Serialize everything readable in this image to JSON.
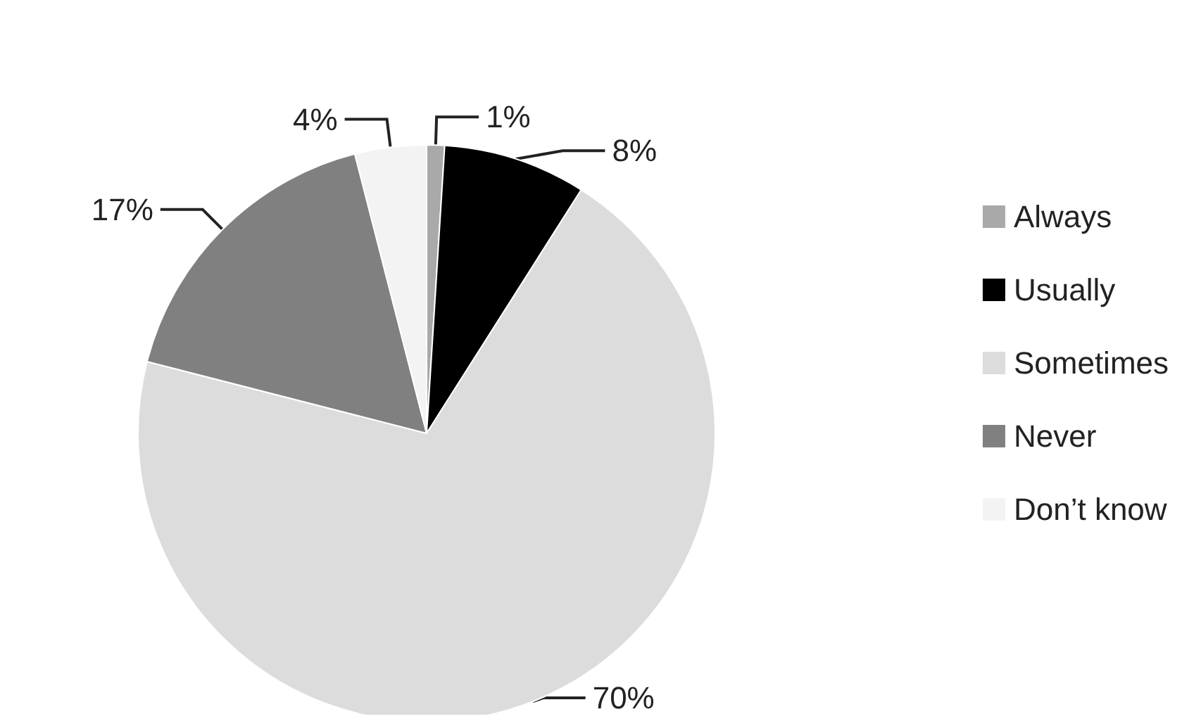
{
  "chart_data": {
    "type": "pie",
    "categories": [
      "Always",
      "Usually",
      "Sometimes",
      "Never",
      "Don’t know"
    ],
    "values": [
      1,
      8,
      70,
      17,
      4
    ],
    "colors": [
      "#a9a9a9",
      "#000000",
      "#dcdcdc",
      "#808080",
      "#f3f3f3"
    ],
    "value_labels": [
      "1%",
      "8%",
      "70%",
      "17%",
      "4%"
    ],
    "legend": "right"
  }
}
